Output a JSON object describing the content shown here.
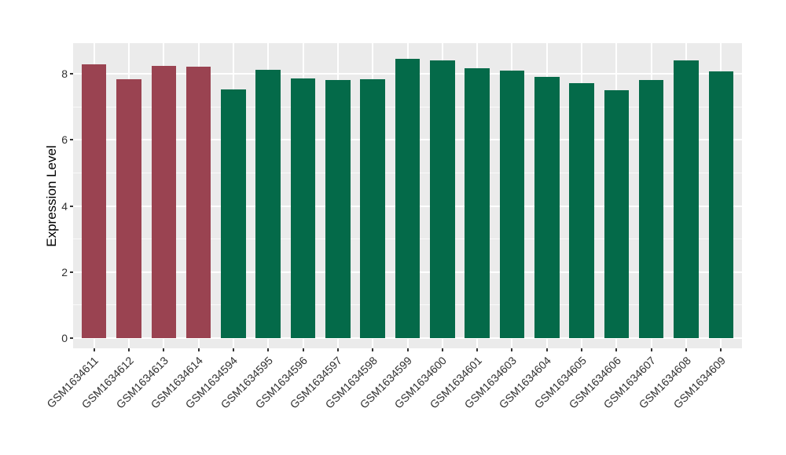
{
  "figure": {
    "background_color": "#FFFFFF",
    "panel_background_color": "#EBEBEB",
    "gridline_color": "#FFFFFF",
    "tick_mark_color": "#333333",
    "axis_text_color": "#303030",
    "axis_title_color": "#000000"
  },
  "chart_data": {
    "type": "bar",
    "title": "",
    "xlabel": "",
    "ylabel": "Expression Level",
    "legend": "none",
    "grid": true,
    "ylim": [
      -0.31,
      8.93
    ],
    "yticks": [
      0,
      2,
      4,
      6,
      8
    ],
    "minor_yticks": [
      1,
      3,
      5,
      7
    ],
    "categories": [
      "GSM1634611",
      "GSM1634612",
      "GSM1634613",
      "GSM1634614",
      "GSM1634594",
      "GSM1634595",
      "GSM1634596",
      "GSM1634597",
      "GSM1634598",
      "GSM1634599",
      "GSM1634600",
      "GSM1634601",
      "GSM1634603",
      "GSM1634604",
      "GSM1634605",
      "GSM1634606",
      "GSM1634607",
      "GSM1634608",
      "GSM1634609"
    ],
    "values": [
      8.28,
      7.84,
      8.25,
      8.22,
      7.53,
      8.12,
      7.85,
      7.81,
      7.84,
      8.46,
      8.41,
      8.17,
      8.1,
      7.9,
      7.71,
      7.51,
      7.82,
      8.41,
      8.08
    ],
    "bar_colors": [
      "#9A4351",
      "#9A4351",
      "#9A4351",
      "#9A4351",
      "#046A49",
      "#046A49",
      "#046A49",
      "#046A49",
      "#046A49",
      "#046A49",
      "#046A49",
      "#046A49",
      "#046A49",
      "#046A49",
      "#046A49",
      "#046A49",
      "#046A49",
      "#046A49",
      "#046A49"
    ],
    "group_colors": {
      "highlight_group": "#9A4351",
      "control_group": "#046A49"
    }
  }
}
